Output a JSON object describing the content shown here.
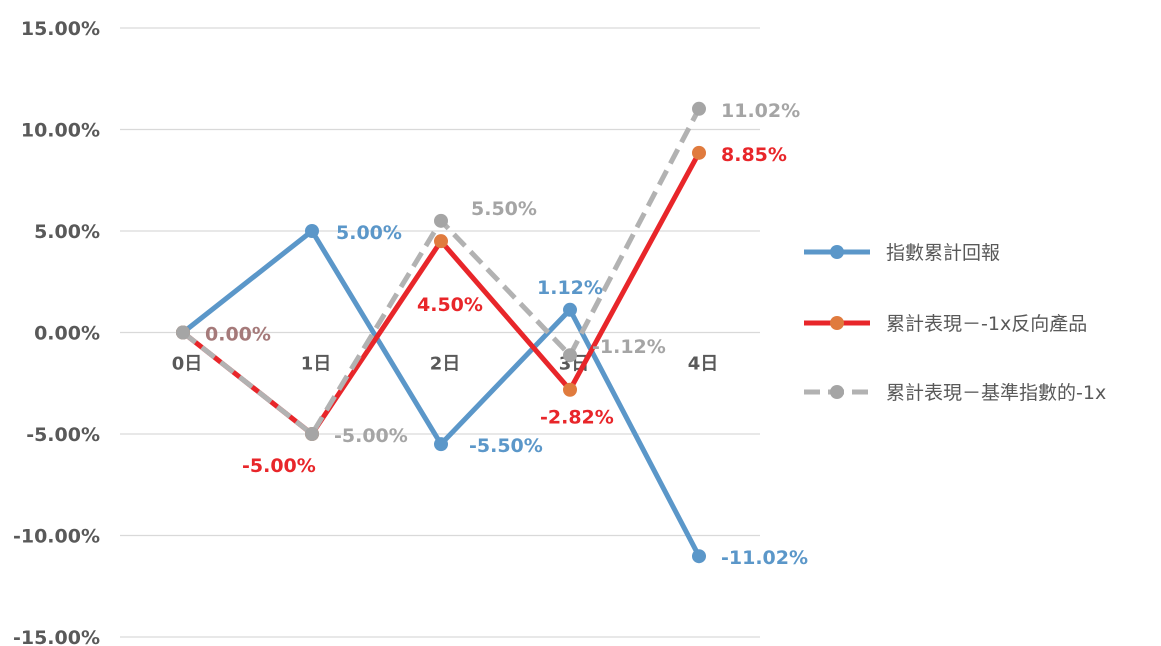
{
  "chart_data": {
    "type": "line",
    "categories": [
      "0日",
      "1日",
      "2日",
      "3日",
      "4日"
    ],
    "ylim": [
      -15,
      15
    ],
    "yticks": [
      {
        "value": 15,
        "label": "15.00%"
      },
      {
        "value": 10,
        "label": "10.00%"
      },
      {
        "value": 5,
        "label": "5.00%"
      },
      {
        "value": 0,
        "label": "0.00%"
      },
      {
        "value": -5,
        "label": "-5.00%"
      },
      {
        "value": -10,
        "label": "-10.00%"
      },
      {
        "value": -15,
        "label": "-15.00%"
      }
    ],
    "grid": true,
    "legend_position": "right",
    "series": [
      {
        "name": "指數累計回報",
        "values": [
          0,
          5,
          -5.5,
          1.12,
          -11.02
        ],
        "labels": [
          "",
          "5.00%",
          "-5.50%",
          "1.12%",
          "-11.02%"
        ],
        "line_color": "#5b97c9",
        "marker_color": "#5b97c9",
        "label_color": "#5b97c9",
        "dashed": false
      },
      {
        "name": "累計表現－-1x反向產品",
        "values": [
          0,
          -5,
          4.5,
          -2.82,
          8.85
        ],
        "labels": [
          "",
          "-5.00%",
          "4.50%",
          "-2.82%",
          "8.85%"
        ],
        "line_color": "#e8262a",
        "marker_color": "#e07b3e",
        "label_color": "#e8262a",
        "dashed": false
      },
      {
        "name": "累計表現－基準指數的-1x",
        "values": [
          0,
          -5,
          5.5,
          -1.12,
          11.02
        ],
        "labels": [
          "0.00%",
          "-5.00%",
          "5.50%",
          "-1.12%",
          "11.02%"
        ],
        "line_color": "#b2b2b2",
        "marker_color": "#a5a5a5",
        "label_color": "#a5a5a5",
        "dashed": true
      }
    ]
  }
}
